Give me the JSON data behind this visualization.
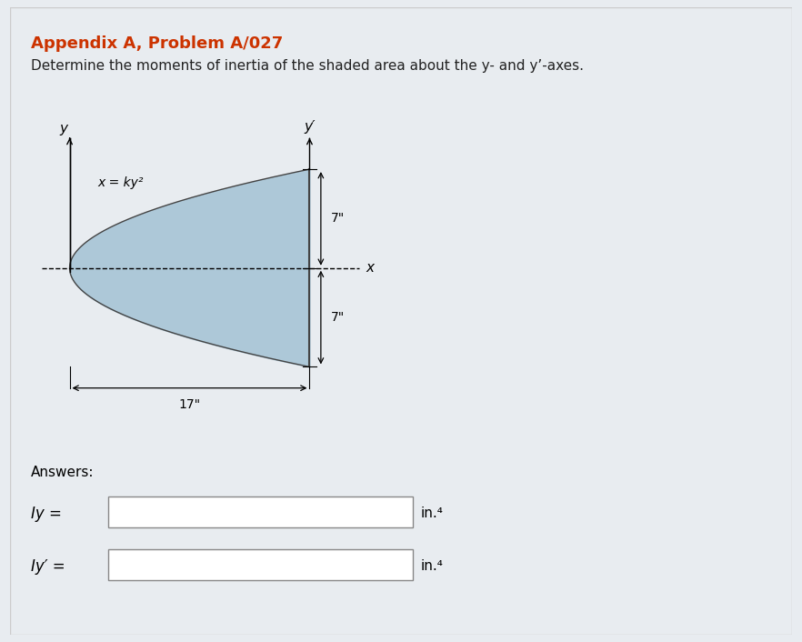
{
  "title": "Appendix A, Problem A/027",
  "title_color": "#cc3300",
  "subtitle": "Determine the moments of inertia of the shaded area about the y- and y’-axes.",
  "subtitle_color": "#222222",
  "background_color": "#e8ecf0",
  "panel_color": "#ffffff",
  "curve_label": "x = ky²",
  "dim_width": "17\"",
  "dim_height_top": "7\"",
  "dim_height_bottom": "7\"",
  "shaded_color": "#adc8d8",
  "shaded_edge_color": "#444444",
  "answers_label": "Answers:",
  "iy_label": "Iy =",
  "iy_prime_label": "Iy′ =",
  "units_label": "in.⁴",
  "axis_x_label": "x",
  "axis_y_label": "y",
  "axis_y_prime_label": "y′"
}
